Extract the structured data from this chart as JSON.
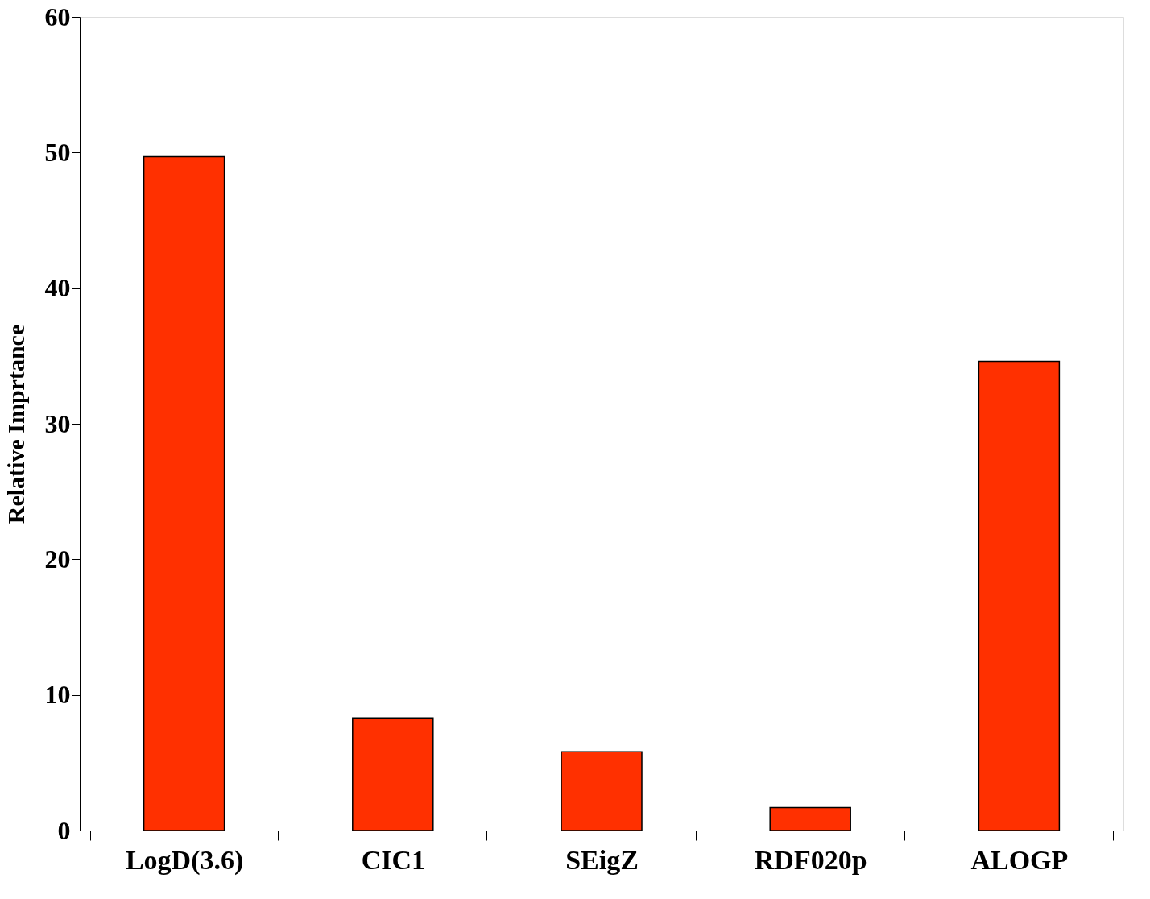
{
  "chart_data": {
    "type": "bar",
    "ylabel": "Relative Imprtance",
    "categories": [
      "LogD(3.6)",
      "CIC1",
      "SEigZ",
      "RDF020p",
      "ALOGP"
    ],
    "values": [
      49.7,
      8.3,
      5.8,
      1.7,
      34.6
    ],
    "color": "#ff3000",
    "ylim": [
      0,
      60
    ],
    "yticks": [
      0,
      10,
      20,
      30,
      40,
      50,
      60
    ],
    "grid": false
  }
}
